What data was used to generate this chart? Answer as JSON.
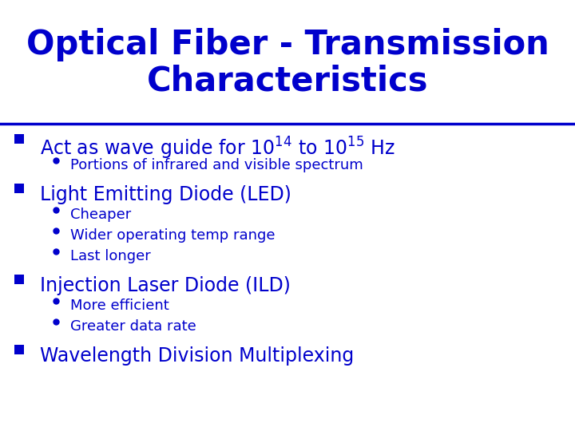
{
  "title_line1": "Optical Fiber - Transmission",
  "title_line2": "Characteristics",
  "title_color": "#0000CC",
  "title_fontsize": 30,
  "divider_color": "#0000CC",
  "background_color": "#FFFFFF",
  "bullet_color": "#0000CC",
  "text_color": "#0000CC",
  "main_bullet_size": 17,
  "sub_bullet_size": 13,
  "main_bullets": [
    {
      "has_superscript": true,
      "text_latex": "Act as wave guide for $10^{14}$ to $10^{15}$ Hz",
      "subs": [
        "Portions of infrared and visible spectrum"
      ]
    },
    {
      "has_superscript": false,
      "text": "Light Emitting Diode (LED)",
      "subs": [
        "Cheaper",
        "Wider operating temp range",
        "Last longer"
      ]
    },
    {
      "has_superscript": false,
      "text": "Injection Laser Diode (ILD)",
      "subs": [
        "More efficient",
        "Greater data rate"
      ]
    },
    {
      "has_superscript": false,
      "text": "Wavelength Division Multiplexing",
      "subs": []
    }
  ]
}
